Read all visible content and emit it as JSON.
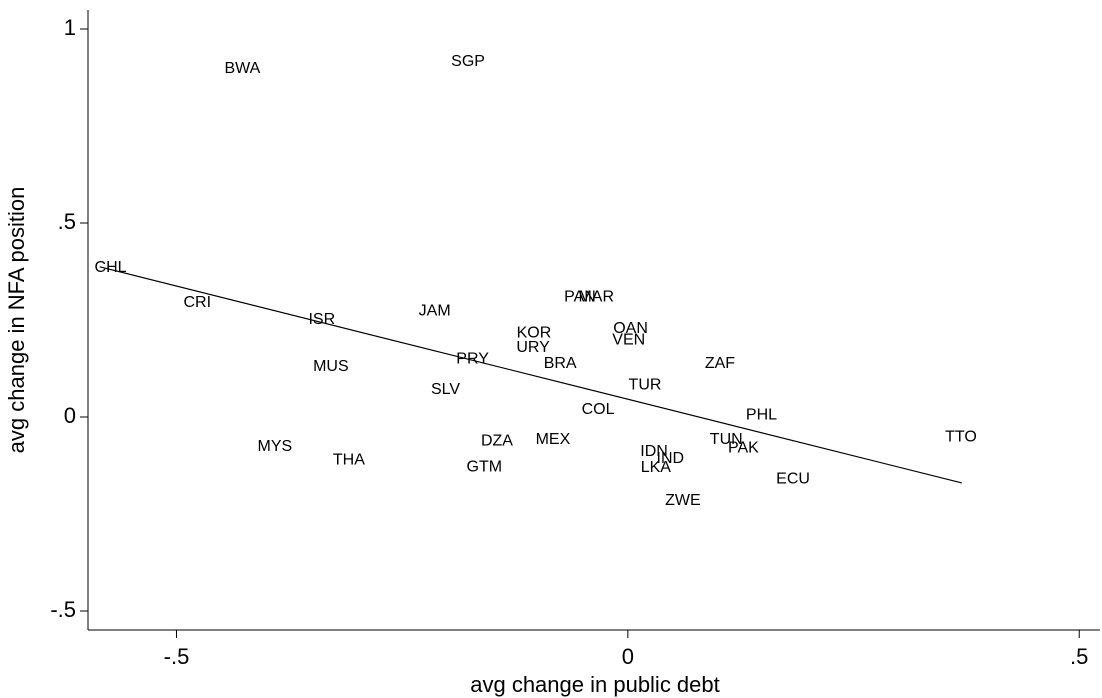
{
  "chart_data": {
    "type": "scatter",
    "x_label": "avg change in public debt",
    "y_label": "avg change in NFA position",
    "xlim": [
      -0.598,
      0.523
    ],
    "ylim": [
      -0.549,
      1.049
    ],
    "xticks": [
      {
        "value": -0.5,
        "label": "-.5"
      },
      0,
      {
        "value": 0.5,
        "label": ".5"
      }
    ],
    "yticks": [
      {
        "value": -0.5,
        "label": "-.5"
      },
      0,
      {
        "value": 0.5,
        "label": ".5"
      },
      1
    ],
    "point_labels": [
      "BWA",
      "SGP",
      "CHL",
      "CRI",
      "ISR",
      "JAM",
      "PAN",
      "MAR",
      "KOR",
      "URY",
      "OAN",
      "VEN",
      "MUS",
      "PRY",
      "BRA",
      "ZAF",
      "SLV",
      "TUR",
      "COL",
      "PHL",
      "TTO",
      "MYS",
      "THA",
      "DZA",
      "MEX",
      "GTM",
      "IDN",
      "IND",
      "LKA",
      "TUN",
      "PAK",
      "ECU",
      "ZWE"
    ],
    "x": [
      -0.427,
      -0.177,
      -0.573,
      -0.477,
      -0.339,
      -0.214,
      -0.053,
      -0.035,
      -0.104,
      -0.105,
      0.003,
      0.001,
      -0.329,
      -0.172,
      -0.075,
      0.102,
      -0.202,
      0.019,
      -0.033,
      0.148,
      0.369,
      -0.391,
      -0.309,
      -0.145,
      -0.083,
      -0.159,
      0.029,
      0.047,
      0.031,
      0.109,
      0.128,
      0.183,
      0.061
    ],
    "y": [
      0.897,
      0.915,
      0.384,
      0.294,
      0.25,
      0.273,
      0.309,
      0.309,
      0.216,
      0.178,
      0.227,
      0.198,
      0.129,
      0.149,
      0.137,
      0.137,
      0.07,
      0.082,
      0.018,
      0.005,
      -0.052,
      -0.077,
      -0.111,
      -0.062,
      -0.059,
      -0.129,
      -0.09,
      -0.108,
      -0.131,
      -0.059,
      -0.08,
      -0.16,
      -0.216
    ],
    "color": "#000000",
    "fit_line": {
      "x": [
        -0.585,
        0.37
      ],
      "y": [
        0.387,
        -0.17
      ]
    }
  }
}
